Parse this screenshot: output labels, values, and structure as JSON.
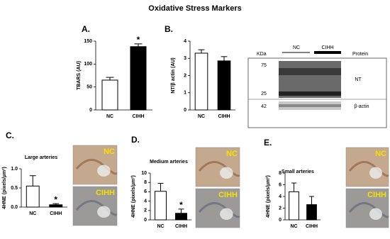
{
  "title": "Oxidative Stress Markers",
  "chart_data": [
    {
      "type": "bar",
      "panel": "A.",
      "ylabel": "TBARS (AU)",
      "categories": [
        "NC",
        "CIHH"
      ],
      "values": [
        65,
        138
      ],
      "errors": [
        6,
        6
      ],
      "colors": [
        "#ffffff",
        "#000000"
      ],
      "significance": [
        null,
        "*"
      ],
      "ylim": [
        0,
        150
      ],
      "yticks": [
        0,
        50,
        100,
        150
      ]
    },
    {
      "type": "bar",
      "panel": "B.",
      "ylabel": "NT/β actin (AU)",
      "categories": [
        "NC",
        "CIHH"
      ],
      "values": [
        3.3,
        2.85
      ],
      "errors": [
        0.2,
        0.25
      ],
      "colors": [
        "#ffffff",
        "#000000"
      ],
      "ylim": [
        0,
        4
      ],
      "yticks": [
        0,
        1,
        2,
        3,
        4
      ]
    },
    {
      "type": "bar",
      "panel": "C.",
      "subtitle": "Large arteries",
      "ylabel": "4HNE (pixels/µm²)",
      "categories": [
        "NC",
        "CIHH"
      ],
      "values": [
        0.55,
        0.06
      ],
      "errors": [
        0.27,
        0.03
      ],
      "colors": [
        "#ffffff",
        "#000000"
      ],
      "significance": [
        null,
        "*"
      ],
      "ylim": [
        0,
        1
      ],
      "yticks": [
        {
          "value": 0,
          "label": "0.0"
        },
        {
          "value": 0.5,
          "label": "0.5"
        },
        {
          "value": 1,
          "label": "1.0"
        }
      ],
      "image_labels": [
        "NC",
        "CIHH"
      ]
    },
    {
      "type": "bar",
      "panel": "D.",
      "subtitle": "Medium arteries",
      "ylabel": "4HNE (pixels/µm²)",
      "categories": [
        "NC",
        "CIHH"
      ],
      "values": [
        6.1,
        1.4
      ],
      "errors": [
        1.7,
        0.9
      ],
      "colors": [
        "#ffffff",
        "#000000"
      ],
      "significance": [
        null,
        "*"
      ],
      "ylim": [
        0,
        10
      ],
      "yticks": [
        0,
        2,
        4,
        6,
        8,
        10
      ],
      "image_labels": [
        "NC",
        "CIHH"
      ]
    },
    {
      "type": "bar",
      "panel": "E.",
      "subtitle": "Small arteries",
      "ylabel": "4HNE (pixels/µm²)",
      "categories": [
        "NC",
        "CIHH"
      ],
      "values": [
        4.8,
        2.6
      ],
      "errors": [
        1.5,
        1.4
      ],
      "colors": [
        "#ffffff",
        "#000000"
      ],
      "ylim": [
        0,
        8
      ],
      "yticks": [
        0,
        2,
        4,
        6,
        8
      ],
      "image_labels": [
        "NC",
        "CIHH"
      ]
    }
  ],
  "blot": {
    "kda": "KDa",
    "groups": [
      "NC",
      "CIHH"
    ],
    "protein": "Protein",
    "markers": [
      "75",
      "25",
      "42"
    ],
    "proteins": [
      "NT",
      "β-actin"
    ]
  }
}
